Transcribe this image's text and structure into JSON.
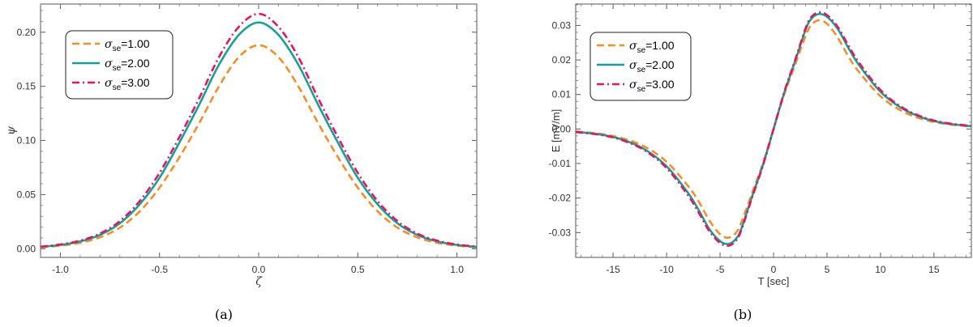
{
  "chart_data": [
    {
      "type": "line",
      "caption": "(a)",
      "xlabel": "ζ",
      "ylabel": "ψ",
      "xlim": [
        -1.1,
        1.1
      ],
      "ylim": [
        -0.008,
        0.226
      ],
      "xticks": [
        "-1.0",
        "-0.5",
        "0.0",
        "0.5",
        "1.0"
      ],
      "xtick_values": [
        -1.0,
        -0.5,
        0.0,
        0.5,
        1.0
      ],
      "yticks": [
        "0.00",
        "0.05",
        "0.10",
        "0.15",
        "0.20"
      ],
      "ytick_values": [
        0.0,
        0.05,
        0.1,
        0.15,
        0.2
      ],
      "grid": false,
      "legend_position": "top-left",
      "x": [
        -1.1,
        -1.0,
        -0.9,
        -0.8,
        -0.7,
        -0.6,
        -0.5,
        -0.4,
        -0.3,
        -0.2,
        -0.1,
        0.0,
        0.1,
        0.2,
        0.3,
        0.4,
        0.5,
        0.6,
        0.7,
        0.8,
        0.9,
        1.0,
        1.1
      ],
      "series": [
        {
          "name": "σse=1.00",
          "label_symbol": "σ",
          "label_sub": "se",
          "label_value": "=1.00",
          "color": "#f28e2b",
          "dash": "dashed",
          "values": [
            0.0014,
            0.0028,
            0.0055,
            0.0105,
            0.0195,
            0.0345,
            0.0564,
            0.0845,
            0.116,
            0.15,
            0.177,
            0.188,
            0.177,
            0.15,
            0.116,
            0.0845,
            0.0564,
            0.0345,
            0.0195,
            0.0105,
            0.0055,
            0.0028,
            0.0014
          ]
        },
        {
          "name": "σse=2.00",
          "label_symbol": "σ",
          "label_sub": "se",
          "label_value": "=2.00",
          "color": "#1a9e9a",
          "dash": "solid",
          "values": [
            0.0017,
            0.0035,
            0.0068,
            0.0128,
            0.0235,
            0.041,
            0.0655,
            0.098,
            0.133,
            0.17,
            0.1975,
            0.209,
            0.1975,
            0.17,
            0.133,
            0.098,
            0.0655,
            0.041,
            0.0235,
            0.0128,
            0.0068,
            0.0035,
            0.0017
          ]
        },
        {
          "name": "σse=3.00",
          "label_symbol": "σ",
          "label_sub": "se",
          "label_value": "=3.00",
          "color": "#e0185d",
          "dash": "dashdot",
          "values": [
            0.0019,
            0.0039,
            0.0075,
            0.014,
            0.0255,
            0.044,
            0.07,
            0.103,
            0.139,
            0.177,
            0.205,
            0.217,
            0.205,
            0.177,
            0.139,
            0.103,
            0.07,
            0.044,
            0.0255,
            0.014,
            0.0075,
            0.0039,
            0.0019
          ]
        }
      ]
    },
    {
      "type": "line",
      "caption": "(b)",
      "xlabel": "T [sec]",
      "ylabel": "E [mV/m]",
      "xlim": [
        -18.5,
        18.5
      ],
      "ylim": [
        -0.0372,
        0.0362
      ],
      "xticks": [
        "-15",
        "-10",
        "-5",
        "0",
        "5",
        "10",
        "15"
      ],
      "xtick_values": [
        -15,
        -10,
        -5,
        0,
        5,
        10,
        15
      ],
      "yticks": [
        "-0.03",
        "-0.02",
        "-0.01",
        "0.00",
        "0.01",
        "0.02",
        "0.03"
      ],
      "ytick_values": [
        -0.03,
        -0.02,
        -0.01,
        0.0,
        0.01,
        0.02,
        0.03
      ],
      "grid": false,
      "legend_position": "top-left",
      "x": [
        -18.5,
        -16,
        -14,
        -12,
        -10,
        -8,
        -7,
        -6,
        -5,
        -4.2,
        -3.5,
        -3,
        -2,
        -1,
        0,
        1,
        2,
        3,
        3.5,
        4.2,
        5,
        6,
        7,
        8,
        10,
        12,
        14,
        16,
        18.5
      ],
      "series": [
        {
          "name": "σse=1.00",
          "label_symbol": "σ",
          "label_sub": "se",
          "label_value": "=1.00",
          "color": "#f28e2b",
          "dash": "dashed",
          "values": [
            -0.0007,
            -0.0015,
            -0.0028,
            -0.0052,
            -0.0095,
            -0.0165,
            -0.021,
            -0.0265,
            -0.0305,
            -0.0315,
            -0.03,
            -0.027,
            -0.0185,
            -0.01,
            0.0,
            0.01,
            0.0185,
            0.027,
            0.03,
            0.0315,
            0.0305,
            0.0265,
            0.021,
            0.0165,
            0.0095,
            0.0052,
            0.0028,
            0.0015,
            0.0007
          ]
        },
        {
          "name": "σse=2.00",
          "label_symbol": "σ",
          "label_sub": "se",
          "label_value": "=2.00",
          "color": "#1a9e9a",
          "dash": "solid",
          "values": [
            -0.0008,
            -0.0017,
            -0.0032,
            -0.006,
            -0.0108,
            -0.0185,
            -0.0235,
            -0.029,
            -0.0325,
            -0.0333,
            -0.0318,
            -0.0288,
            -0.0195,
            -0.0105,
            0.0,
            0.0105,
            0.0195,
            0.0288,
            0.0318,
            0.0333,
            0.0325,
            0.029,
            0.0235,
            0.0185,
            0.0108,
            0.006,
            0.0032,
            0.0017,
            0.0008
          ]
        },
        {
          "name": "σse=3.00",
          "label_symbol": "σ",
          "label_sub": "se",
          "label_value": "=3.00",
          "color": "#e0185d",
          "dash": "dashdot",
          "values": [
            -0.0009,
            -0.0018,
            -0.0034,
            -0.0063,
            -0.0113,
            -0.0192,
            -0.0242,
            -0.0296,
            -0.033,
            -0.0338,
            -0.0323,
            -0.0292,
            -0.0198,
            -0.0107,
            0.0,
            0.0107,
            0.0198,
            0.0292,
            0.0323,
            0.0338,
            0.033,
            0.0296,
            0.0242,
            0.0192,
            0.0113,
            0.0063,
            0.0034,
            0.0018,
            0.0009
          ]
        }
      ]
    }
  ]
}
